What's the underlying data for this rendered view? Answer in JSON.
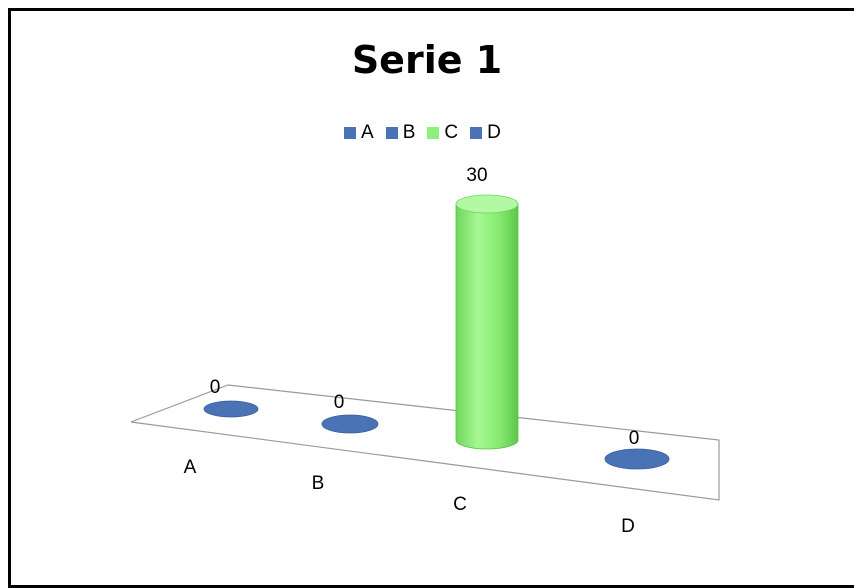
{
  "chart_data": {
    "type": "bar",
    "title": "Serie 1",
    "categories": [
      "A",
      "B",
      "C",
      "D"
    ],
    "values": [
      0,
      0,
      30,
      0
    ],
    "data_labels": [
      "0",
      "0",
      "30",
      "0"
    ],
    "colors": [
      "#4a73b5",
      "#4a73b5",
      "#8ef07a",
      "#4a73b5"
    ],
    "legend": [
      "A",
      "B",
      "C",
      "D"
    ],
    "legend_position": "top",
    "grid": false,
    "style": "3d-cylinder"
  }
}
